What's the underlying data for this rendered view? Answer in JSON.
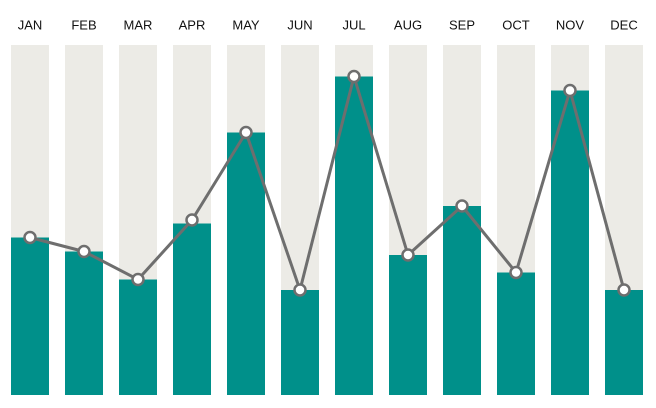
{
  "chart_data": {
    "type": "bar",
    "categories": [
      "JAN",
      "FEB",
      "MAR",
      "APR",
      "MAY",
      "JUN",
      "JUL",
      "AUG",
      "SEP",
      "OCT",
      "NOV",
      "DEC"
    ],
    "series": [
      {
        "type": "bar",
        "color": "#00908a",
        "values": [
          45,
          41,
          33,
          49,
          75,
          30,
          91,
          40,
          54,
          35,
          87,
          30
        ]
      },
      {
        "type": "line",
        "color": "#6e6e6e",
        "values": [
          45,
          41,
          33,
          50,
          75,
          30,
          91,
          40,
          54,
          35,
          87,
          30
        ]
      }
    ],
    "track_color": "#ecebe6",
    "ylim": [
      0,
      100
    ]
  }
}
